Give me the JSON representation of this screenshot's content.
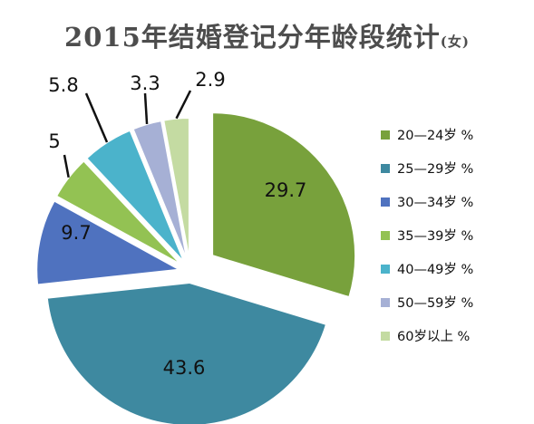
{
  "title": "2015年结婚登记分年龄段统计",
  "title_suffix": "(女)",
  "chart_data": {
    "type": "pie",
    "title": "2015年结婚登记分年龄段统计(女)",
    "legend_position": "right",
    "categories": [
      "20—24岁 %",
      "25—29岁 %",
      "30—34岁 %",
      "35—39岁 %",
      "40—49岁 %",
      "50—59岁 %",
      "60岁以上 %"
    ],
    "values": [
      29.7,
      43.6,
      9.7,
      5,
      5.8,
      3.3,
      2.9
    ],
    "value_labels": [
      "29.7",
      "43.6",
      "9.7",
      "5",
      "5.8",
      "3.3",
      "2.9"
    ],
    "colors": [
      "#78a13c",
      "#3e89a0",
      "#4f72bf",
      "#93c253",
      "#4bb3cb",
      "#a6b0d5",
      "#c4dba2"
    ]
  }
}
